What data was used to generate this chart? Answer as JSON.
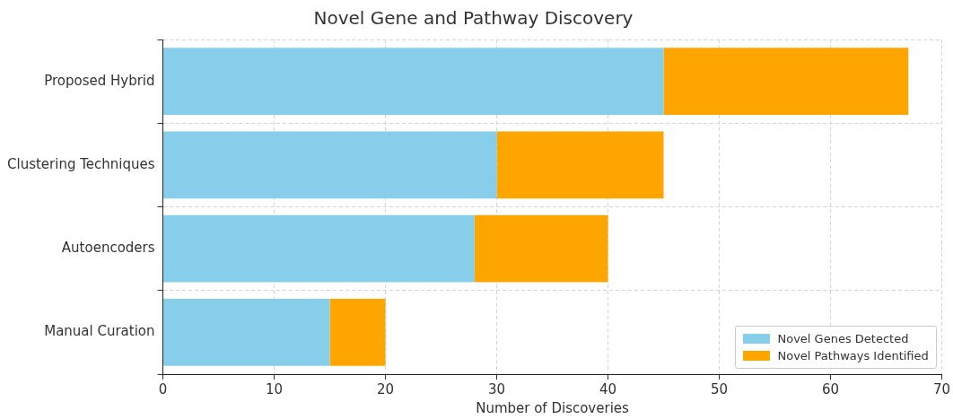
{
  "chart_data": {
    "type": "bar",
    "orientation": "horizontal",
    "stacked": true,
    "title": "Novel Gene and Pathway Discovery",
    "xlabel": "Number of Discoveries",
    "categories": [
      "Proposed Hybrid",
      "Clustering Techniques",
      "Autoencoders",
      "Manual Curation"
    ],
    "series": [
      {
        "name": "Novel Genes Detected",
        "color": "#87ceeb",
        "values": [
          45,
          30,
          28,
          15
        ]
      },
      {
        "name": "Novel Pathways Identified",
        "color": "#ffa500",
        "values": [
          22,
          15,
          12,
          5
        ]
      }
    ],
    "xlim": [
      0,
      70
    ],
    "xticks": [
      0,
      10,
      20,
      30,
      40,
      50,
      60,
      70
    ],
    "grid": true,
    "legend": "bottom right"
  }
}
